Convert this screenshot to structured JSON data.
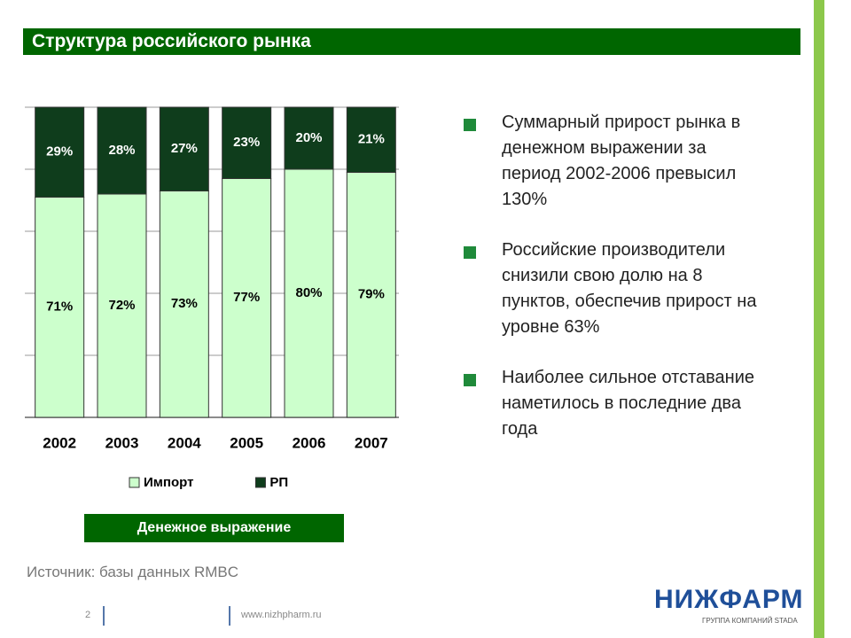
{
  "title": "Структура российского рынка",
  "chart_data": {
    "type": "bar",
    "stacked": true,
    "categories": [
      "2002",
      "2003",
      "2004",
      "2005",
      "2006",
      "2007"
    ],
    "series": [
      {
        "name": "Импорт",
        "color": "#ccffcc",
        "values": [
          71,
          72,
          73,
          77,
          80,
          79
        ],
        "value_labels": [
          "71%",
          "72%",
          "73%",
          "77%",
          "80%",
          "79%"
        ]
      },
      {
        "name": "РП",
        "color": "#0f3d1c",
        "values": [
          29,
          28,
          27,
          23,
          20,
          21
        ],
        "value_labels": [
          "29%",
          "28%",
          "27%",
          "23%",
          "20%",
          "21%"
        ]
      }
    ],
    "ylim": [
      0,
      100
    ],
    "yticks": [
      0,
      20,
      40,
      60,
      80,
      100
    ],
    "grid": true
  },
  "caption": "Денежное выражение",
  "bullets": [
    "Суммарный прирост рынка в денежном выражении за период 2002-2006 превысил 130%",
    "Российские производители снизили свою долю на 8 пунктов, обеспечив прирост на уровне 63%",
    "Наиболее сильное отставание наметилось в последние два года"
  ],
  "source": "Источник: базы данных RMBC",
  "footer": {
    "page": "2",
    "url": "www.nizhpharm.ru"
  },
  "logo": {
    "name": "НИЖФАРМ",
    "tagline": "ГРУППА КОМПАНИЙ STADA"
  }
}
